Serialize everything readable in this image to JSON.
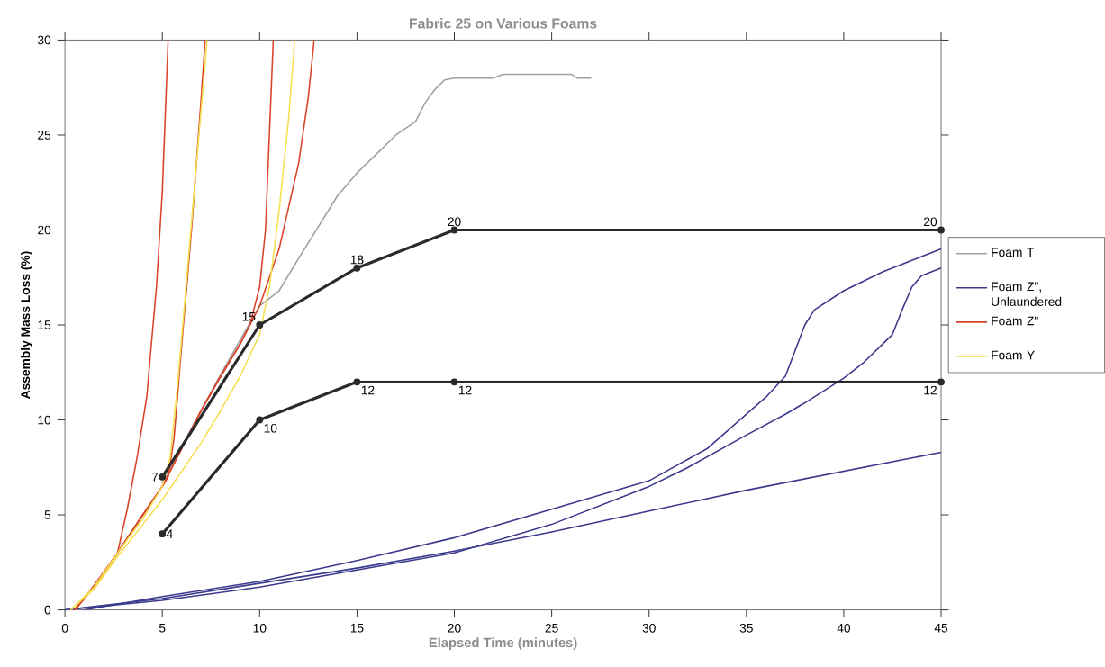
{
  "chart_data": {
    "type": "line",
    "title": "Fabric 25 on Various Foams",
    "xlabel": "Elapsed Time (minutes)",
    "ylabel": "Assembly Mass Loss (%)",
    "xlim": [
      0,
      45
    ],
    "ylim": [
      0,
      30
    ],
    "xticks": [
      0,
      5,
      10,
      15,
      20,
      25,
      30,
      35,
      40,
      45
    ],
    "yticks": [
      0,
      5,
      10,
      15,
      20,
      25,
      30
    ],
    "grid": false,
    "legend": "right",
    "series": [
      {
        "name": "Foam T",
        "color": "#a0a0a0",
        "x": [
          5,
          6,
          7,
          8,
          9,
          10,
          11,
          12,
          14,
          15,
          16,
          17,
          18,
          18.5,
          19,
          19.5,
          20,
          22,
          22.5,
          26,
          26.3,
          27
        ],
        "values": [
          6.7,
          8.6,
          10.5,
          12.4,
          14.2,
          16,
          16.8,
          18.5,
          21.8,
          23,
          24,
          25,
          25.7,
          26.7,
          27.4,
          27.9,
          28,
          28,
          28.2,
          28.2,
          28,
          28
        ]
      },
      {
        "name": "Foam Z\", Unlaundered",
        "color": "#3c3a8c",
        "x": [
          0,
          5,
          10,
          15,
          20,
          25,
          30,
          35,
          40,
          45
        ],
        "values": [
          0,
          0.6,
          1.4,
          2.2,
          3.1,
          4.1,
          5.2,
          6.3,
          7.3,
          8.3
        ]
      },
      {
        "color": "#3c3a8c",
        "x": [
          1,
          5,
          10,
          15,
          20,
          25,
          30,
          33,
          35,
          36,
          37,
          38,
          38.5,
          40,
          42,
          44,
          45
        ],
        "values": [
          0,
          0.7,
          1.5,
          2.6,
          3.8,
          5.3,
          6.8,
          8.5,
          10.3,
          11.2,
          12.3,
          15,
          15.8,
          16.8,
          17.8,
          18.6,
          19
        ]
      },
      {
        "color": "#3c3a8c",
        "x": [
          0,
          5,
          10,
          15,
          20,
          25,
          30,
          32,
          35,
          37,
          38,
          40,
          41,
          42,
          42.5,
          43,
          43.5,
          44,
          45
        ],
        "values": [
          0,
          0.5,
          1.2,
          2.1,
          3,
          4.5,
          6.5,
          7.5,
          9.2,
          10.3,
          10.9,
          12.2,
          13,
          14,
          14.5,
          15.8,
          17,
          17.6,
          18
        ]
      },
      {
        "name": "Foam Z\"",
        "color": "#d9452b",
        "x": [
          0.5,
          1.5,
          2.7,
          3.2,
          3.7,
          4.2,
          4.7,
          5,
          5.3
        ],
        "values": [
          0,
          1.3,
          3,
          5.3,
          8,
          11.2,
          17,
          22,
          30
        ]
      },
      {
        "color": "#d9452b",
        "x": [
          0.5,
          1.5,
          2.7,
          4,
          5,
          5.3,
          5.6,
          6,
          6.5,
          7,
          7.2
        ],
        "values": [
          0,
          1.2,
          3,
          5,
          6.5,
          7,
          9,
          14,
          20,
          27,
          30
        ]
      },
      {
        "color": "#d9452b",
        "x": [
          0.5,
          1.5,
          2.7,
          4,
          5,
          6,
          7,
          8,
          9,
          9.5,
          10,
          10.3,
          10.5,
          10.7
        ],
        "values": [
          0,
          1.2,
          3,
          5,
          6.5,
          8.5,
          10.5,
          12.3,
          14,
          15,
          17,
          20,
          25,
          30
        ]
      },
      {
        "color": "#d9452b",
        "x": [
          0.5,
          1.5,
          2.7,
          4,
          5,
          6,
          7,
          8,
          9,
          10,
          11,
          12,
          12.5,
          12.8
        ],
        "values": [
          0,
          1.2,
          3,
          5,
          6.5,
          8.5,
          10.5,
          12.3,
          14,
          16,
          19,
          23.5,
          27,
          30
        ]
      },
      {
        "name": "Foam Y",
        "color": "#f5e050",
        "x": [
          0.3,
          1.5,
          2.7,
          4,
          5,
          5.4,
          5.8,
          6.3,
          6.8,
          7.3
        ],
        "values": [
          0,
          1.2,
          3,
          4.8,
          6.5,
          8,
          12,
          18,
          24,
          30
        ]
      },
      {
        "color": "#f5e050",
        "x": [
          0.3,
          1.5,
          2.7,
          4,
          5,
          6,
          7,
          8,
          9,
          10,
          10.5,
          11,
          11.5,
          11.8
        ],
        "values": [
          0,
          1.1,
          2.8,
          4.5,
          5.8,
          7.3,
          8.8,
          10.5,
          12.3,
          14.5,
          17,
          21,
          26,
          30
        ]
      },
      {
        "color": "#2a2a2a",
        "marker": "circle",
        "x": [
          5,
          10,
          15,
          20,
          45
        ],
        "values": [
          7,
          15,
          18,
          20,
          20
        ],
        "value_labels": [
          "7",
          "15",
          "18",
          "20",
          "20"
        ]
      },
      {
        "color": "#2a2a2a",
        "marker": "circle",
        "x": [
          5,
          10,
          15,
          20,
          45
        ],
        "values": [
          4,
          10,
          12,
          12,
          12
        ],
        "value_labels": [
          "4",
          "10",
          "12",
          "12",
          "12"
        ]
      }
    ]
  }
}
